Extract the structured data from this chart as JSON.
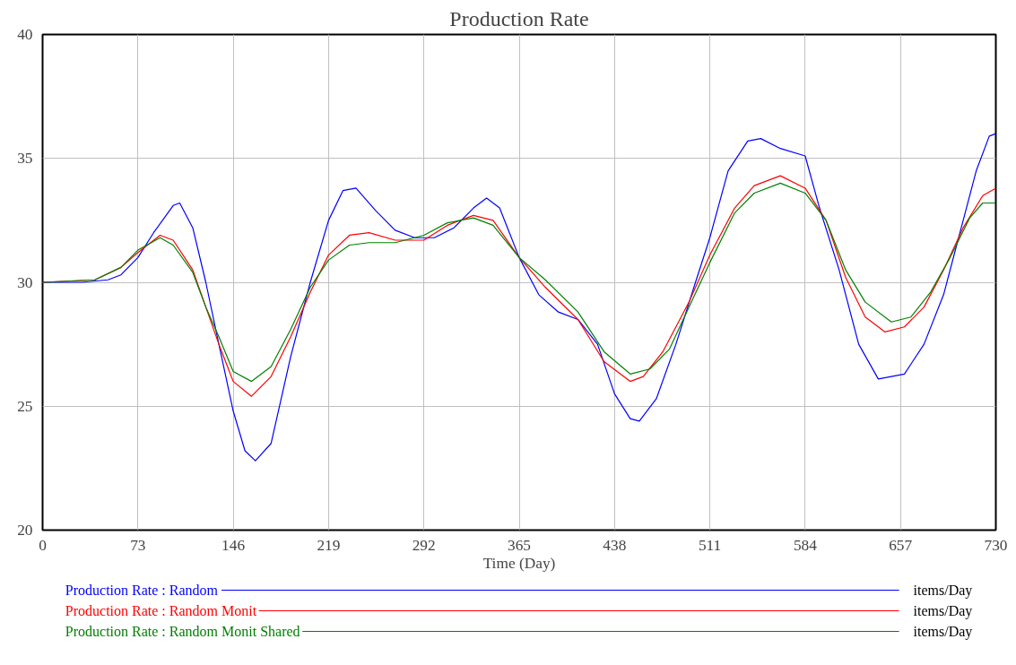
{
  "chart_data": {
    "type": "line",
    "title": "Production Rate",
    "xlabel": "Time (Day)",
    "xlim": [
      0,
      730
    ],
    "xticks": [
      0,
      73,
      146,
      219,
      292,
      365,
      438,
      511,
      584,
      657,
      730
    ],
    "ylim": [
      20,
      40
    ],
    "yticks": [
      20,
      25,
      30,
      35,
      40
    ],
    "grid": true,
    "legend": "bottom",
    "line_style": "solid",
    "annotations": [
      "items/Day",
      "items/Day",
      "items/Day"
    ],
    "series": [
      {
        "name": "Production Rate : Random",
        "color": "#0000ff",
        "x": [
          0,
          30,
          50,
          60,
          73,
          85,
          100,
          105,
          115,
          125,
          135,
          146,
          155,
          163,
          175,
          190,
          205,
          219,
          230,
          240,
          255,
          270,
          285,
          300,
          315,
          330,
          340,
          350,
          365,
          380,
          395,
          410,
          425,
          438,
          450,
          457,
          470,
          485,
          500,
          511,
          525,
          540,
          550,
          565,
          584,
          595,
          610,
          625,
          640,
          660,
          675,
          690,
          700,
          715,
          725,
          730
        ],
        "values": [
          30,
          30,
          30.1,
          30.3,
          31,
          32,
          33.1,
          33.2,
          32.2,
          30,
          27.5,
          24.8,
          23.2,
          22.8,
          23.5,
          27,
          30,
          32.5,
          33.7,
          33.8,
          32.9,
          32.1,
          31.8,
          31.8,
          32.2,
          33,
          33.4,
          33,
          31,
          29.5,
          28.8,
          28.5,
          27.5,
          25.5,
          24.5,
          24.4,
          25.3,
          27.5,
          30,
          31.8,
          34.5,
          35.7,
          35.8,
          35.4,
          35.1,
          33,
          30.5,
          27.5,
          26.1,
          26.3,
          27.5,
          29.5,
          31.5,
          34.5,
          35.9,
          36
        ]
      },
      {
        "name": "Production Rate : Random Monit",
        "color": "#ff0000",
        "x": [
          0,
          40,
          60,
          73,
          90,
          100,
          115,
          125,
          135,
          146,
          160,
          175,
          190,
          205,
          219,
          235,
          250,
          270,
          292,
          310,
          330,
          345,
          365,
          385,
          410,
          430,
          450,
          460,
          475,
          495,
          511,
          530,
          545,
          565,
          584,
          600,
          615,
          630,
          645,
          660,
          675,
          690,
          705,
          720,
          730
        ],
        "values": [
          30,
          30.1,
          30.6,
          31.2,
          31.9,
          31.7,
          30.5,
          29,
          27.5,
          26,
          25.4,
          26.2,
          27.8,
          29.6,
          31.1,
          31.9,
          32,
          31.7,
          31.7,
          32.3,
          32.7,
          32.5,
          31,
          29.8,
          28.5,
          26.8,
          26,
          26.2,
          27.2,
          29.2,
          31.1,
          33,
          33.9,
          34.3,
          33.8,
          32.5,
          30.2,
          28.6,
          28,
          28.2,
          29,
          30.5,
          32.2,
          33.5,
          33.8
        ]
      },
      {
        "name": "Production Rate : Random Monit Shared",
        "color": "#008000",
        "x": [
          0,
          40,
          60,
          73,
          90,
          100,
          115,
          125,
          135,
          146,
          160,
          175,
          190,
          205,
          219,
          235,
          250,
          270,
          292,
          310,
          330,
          345,
          365,
          385,
          410,
          430,
          450,
          465,
          480,
          495,
          511,
          530,
          545,
          565,
          584,
          600,
          615,
          630,
          650,
          665,
          680,
          695,
          710,
          720,
          730
        ],
        "values": [
          30,
          30.1,
          30.6,
          31.3,
          31.8,
          31.5,
          30.4,
          29,
          27.8,
          26.4,
          26,
          26.6,
          28.1,
          29.8,
          30.9,
          31.5,
          31.6,
          31.6,
          31.9,
          32.4,
          32.6,
          32.3,
          31,
          30.1,
          28.8,
          27.2,
          26.3,
          26.5,
          27.3,
          29,
          30.8,
          32.8,
          33.6,
          34,
          33.6,
          32.5,
          30.5,
          29.2,
          28.4,
          28.6,
          29.6,
          31,
          32.6,
          33.2,
          33.2
        ]
      }
    ]
  }
}
